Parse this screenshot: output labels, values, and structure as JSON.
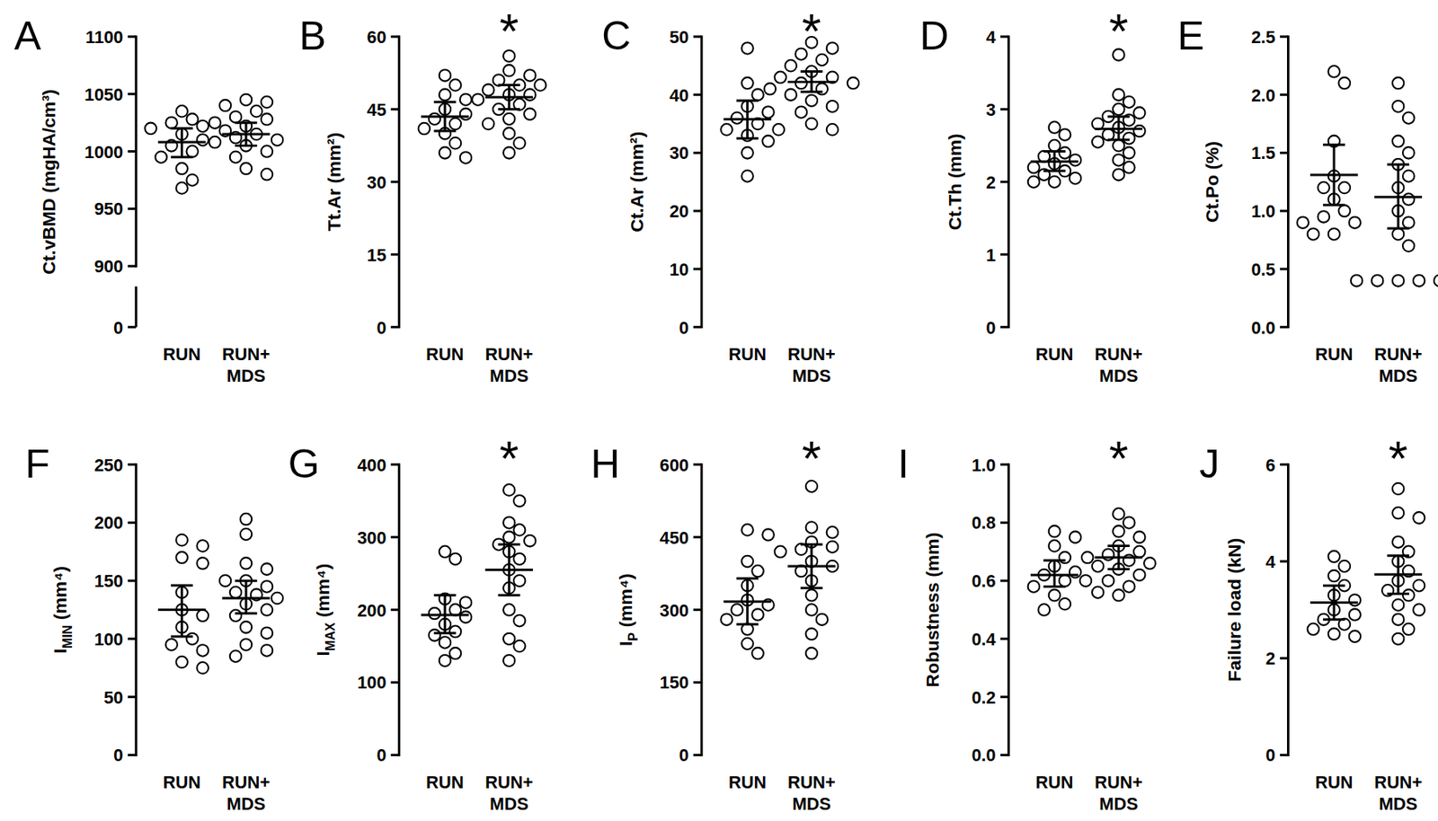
{
  "chart_data": [
    {
      "type": "strip",
      "title": "A",
      "y_label": [
        "Ct.vBMD (mgHA/cm³)"
      ],
      "categories": [
        "RUN",
        "RUN+ MDS"
      ],
      "marker": "open-circle",
      "values": [
        [
          1035,
          1028,
          1025,
          1022,
          1020,
          1015,
          1010,
          1005,
          1000,
          995,
          985,
          975,
          968
        ],
        [
          1045,
          1043,
          1040,
          1035,
          1030,
          1028,
          1025,
          1022,
          1018,
          1015,
          1012,
          1010,
          1008,
          1005,
          1000,
          995,
          985,
          980
        ]
      ],
      "means": [
        1008,
        1015
      ],
      "ci_low": [
        995,
        1005
      ],
      "ci_high": [
        1020,
        1025
      ],
      "significance": [
        null,
        null
      ],
      "ylim": [
        0,
        1100
      ],
      "y_break": [
        0,
        900
      ],
      "yticks": [
        0,
        900,
        950,
        1000,
        1050,
        1100
      ]
    },
    {
      "type": "strip",
      "title": "B",
      "y_label": [
        "Tt.Ar (mm²)"
      ],
      "categories": [
        "RUN",
        "RUN+ MDS"
      ],
      "marker": "open-circle",
      "values": [
        [
          52,
          50,
          48,
          47,
          45,
          44,
          43,
          42,
          41,
          40,
          38,
          36,
          35
        ],
        [
          56,
          53,
          52,
          51,
          50,
          50,
          49,
          48,
          48,
          47,
          46,
          45,
          44,
          43,
          42,
          40,
          38,
          36
        ]
      ],
      "means": [
        43.5,
        47.5
      ],
      "ci_low": [
        40.5,
        45
      ],
      "ci_high": [
        46.5,
        50
      ],
      "significance": [
        null,
        "*"
      ],
      "ylim": [
        0,
        60
      ],
      "yticks": [
        0,
        15,
        30,
        45,
        60
      ]
    },
    {
      "type": "strip",
      "title": "C",
      "y_label": [
        "Ct.Ar (mm²)"
      ],
      "categories": [
        "RUN",
        "RUN+ MDS"
      ],
      "marker": "open-circle",
      "values": [
        [
          48,
          42,
          40,
          38,
          37,
          36,
          35,
          34,
          34,
          33,
          32,
          30,
          26
        ],
        [
          49,
          48,
          47,
          46,
          45,
          44,
          43,
          43,
          42,
          42,
          41,
          41,
          40,
          39,
          38,
          37,
          35,
          34
        ]
      ],
      "means": [
        35.8,
        42.2
      ],
      "ci_low": [
        32.5,
        40.5
      ],
      "ci_high": [
        39,
        44
      ],
      "significance": [
        null,
        "*"
      ],
      "ylim": [
        0,
        50
      ],
      "yticks": [
        0,
        10,
        20,
        30,
        40,
        50
      ]
    },
    {
      "type": "strip",
      "title": "D",
      "y_label": [
        "Ct.Th (mm)"
      ],
      "categories": [
        "RUN",
        "RUN+ MDS"
      ],
      "marker": "open-circle",
      "values": [
        [
          2.75,
          2.65,
          2.5,
          2.4,
          2.35,
          2.3,
          2.25,
          2.2,
          2.15,
          2.1,
          2.05,
          2.0,
          2.0
        ],
        [
          3.75,
          3.2,
          3.1,
          3.0,
          2.95,
          2.9,
          2.85,
          2.8,
          2.75,
          2.7,
          2.65,
          2.6,
          2.55,
          2.5,
          2.4,
          2.3,
          2.2,
          2.1
        ]
      ],
      "means": [
        2.28,
        2.73
      ],
      "ci_low": [
        2.15,
        2.58
      ],
      "ci_high": [
        2.42,
        2.9
      ],
      "significance": [
        null,
        "*"
      ],
      "ylim": [
        0,
        4
      ],
      "yticks": [
        0,
        1,
        2,
        3,
        4
      ]
    },
    {
      "type": "strip",
      "title": "E",
      "y_label": [
        "Ct.Po (%)"
      ],
      "categories": [
        "RUN",
        "RUN+ MDS"
      ],
      "marker": "open-circle",
      "values": [
        [
          2.2,
          2.1,
          1.6,
          1.3,
          1.2,
          1.2,
          1.1,
          1.0,
          0.95,
          0.9,
          0.9,
          0.8,
          0.8
        ],
        [
          2.1,
          1.9,
          1.8,
          1.6,
          1.5,
          1.4,
          1.3,
          1.2,
          1.1,
          1.0,
          0.9,
          0.8,
          0.7,
          0.4,
          0.4,
          0.4,
          0.4,
          0.4
        ]
      ],
      "means": [
        1.31,
        1.12
      ],
      "ci_low": [
        1.05,
        0.85
      ],
      "ci_high": [
        1.57,
        1.4
      ],
      "significance": [
        null,
        null
      ],
      "ylim": [
        0,
        2.5
      ],
      "yticks": [
        {
          "value": 0,
          "label": "0.0"
        },
        {
          "value": 0.5,
          "label": "0.5"
        },
        {
          "value": 1,
          "label": "1.0"
        },
        {
          "value": 1.5,
          "label": "1.5"
        },
        {
          "value": 2,
          "label": "2.0"
        },
        {
          "value": 2.5,
          "label": "2.5"
        }
      ]
    },
    {
      "type": "strip",
      "title": "F",
      "y_label": [
        "I",
        "MIN",
        " (mm⁴)"
      ],
      "categories": [
        "RUN",
        "RUN+ MDS"
      ],
      "marker": "open-circle",
      "values": [
        [
          185,
          180,
          170,
          165,
          140,
          125,
          120,
          110,
          100,
          95,
          90,
          80,
          75
        ],
        [
          203,
          190,
          165,
          160,
          150,
          150,
          145,
          140,
          138,
          135,
          130,
          125,
          120,
          110,
          105,
          95,
          90,
          85
        ]
      ],
      "means": [
        125,
        135
      ],
      "ci_low": [
        102,
        122
      ],
      "ci_high": [
        146,
        150
      ],
      "significance": [
        null,
        null
      ],
      "ylim": [
        0,
        250
      ],
      "yticks": [
        0,
        50,
        100,
        150,
        200,
        250
      ]
    },
    {
      "type": "strip",
      "title": "G",
      "y_label": [
        "I",
        "MAX",
        " (mm⁴)"
      ],
      "categories": [
        "RUN",
        "RUN+ MDS"
      ],
      "marker": "open-circle",
      "values": [
        [
          280,
          270,
          215,
          210,
          200,
          195,
          190,
          180,
          170,
          165,
          155,
          140,
          130
        ],
        [
          365,
          350,
          320,
          310,
          300,
          295,
          290,
          280,
          270,
          255,
          240,
          230,
          200,
          185,
          160,
          150,
          130
        ]
      ],
      "means": [
        193,
        255
      ],
      "ci_low": [
        168,
        220
      ],
      "ci_high": [
        220,
        290
      ],
      "significance": [
        null,
        "*"
      ],
      "ylim": [
        0,
        400
      ],
      "yticks": [
        0,
        100,
        200,
        300,
        400
      ]
    },
    {
      "type": "strip",
      "title": "H",
      "y_label": [
        "I",
        "P",
        " (mm⁴)"
      ],
      "categories": [
        "RUN",
        "RUN+ MDS"
      ],
      "marker": "open-circle",
      "values": [
        [
          465,
          455,
          400,
          380,
          350,
          320,
          310,
          300,
          290,
          280,
          260,
          230,
          210
        ],
        [
          555,
          470,
          460,
          440,
          430,
          425,
          420,
          400,
          390,
          380,
          360,
          330,
          300,
          280,
          250,
          210
        ]
      ],
      "means": [
        317,
        390
      ],
      "ci_low": [
        270,
        345
      ],
      "ci_high": [
        365,
        435
      ],
      "significance": [
        null,
        "*"
      ],
      "ylim": [
        0,
        600
      ],
      "yticks": [
        0,
        150,
        300,
        450,
        600
      ]
    },
    {
      "type": "strip",
      "title": "I",
      "y_label": [
        "Robustness (mm)"
      ],
      "categories": [
        "RUN",
        "RUN+ MDS"
      ],
      "marker": "open-circle",
      "values": [
        [
          0.77,
          0.75,
          0.72,
          0.68,
          0.65,
          0.63,
          0.62,
          0.6,
          0.6,
          0.58,
          0.55,
          0.52,
          0.5
        ],
        [
          0.83,
          0.8,
          0.77,
          0.75,
          0.72,
          0.7,
          0.69,
          0.68,
          0.67,
          0.66,
          0.65,
          0.64,
          0.62,
          0.6,
          0.58,
          0.56,
          0.55
        ]
      ],
      "means": [
        0.62,
        0.68
      ],
      "ci_low": [
        0.58,
        0.64
      ],
      "ci_high": [
        0.67,
        0.72
      ],
      "significance": [
        null,
        "*"
      ],
      "ylim": [
        0,
        1
      ],
      "yticks": [
        {
          "value": 0,
          "label": "0.0"
        },
        {
          "value": 0.2,
          "label": "0.2"
        },
        {
          "value": 0.4,
          "label": "0.4"
        },
        {
          "value": 0.6,
          "label": "0.6"
        },
        {
          "value": 0.8,
          "label": "0.8"
        },
        {
          "value": 1,
          "label": "1.0"
        }
      ]
    },
    {
      "type": "strip",
      "title": "J",
      "y_label": [
        "Failure load (kN)"
      ],
      "categories": [
        "RUN",
        "RUN+ MDS"
      ],
      "marker": "open-circle",
      "values": [
        [
          4.1,
          3.9,
          3.7,
          3.5,
          3.3,
          3.2,
          3.0,
          2.9,
          2.8,
          2.7,
          2.6,
          2.5,
          2.45
        ],
        [
          5.5,
          5.0,
          4.9,
          4.4,
          4.2,
          4.0,
          3.8,
          3.6,
          3.5,
          3.4,
          3.3,
          3.1,
          3.0,
          2.8,
          2.6,
          2.4
        ]
      ],
      "means": [
        3.15,
        3.73
      ],
      "ci_low": [
        2.8,
        3.33
      ],
      "ci_high": [
        3.5,
        4.12
      ],
      "significance": [
        null,
        "*"
      ],
      "ylim": [
        0,
        6
      ],
      "yticks": [
        0,
        2,
        4,
        6
      ]
    }
  ]
}
